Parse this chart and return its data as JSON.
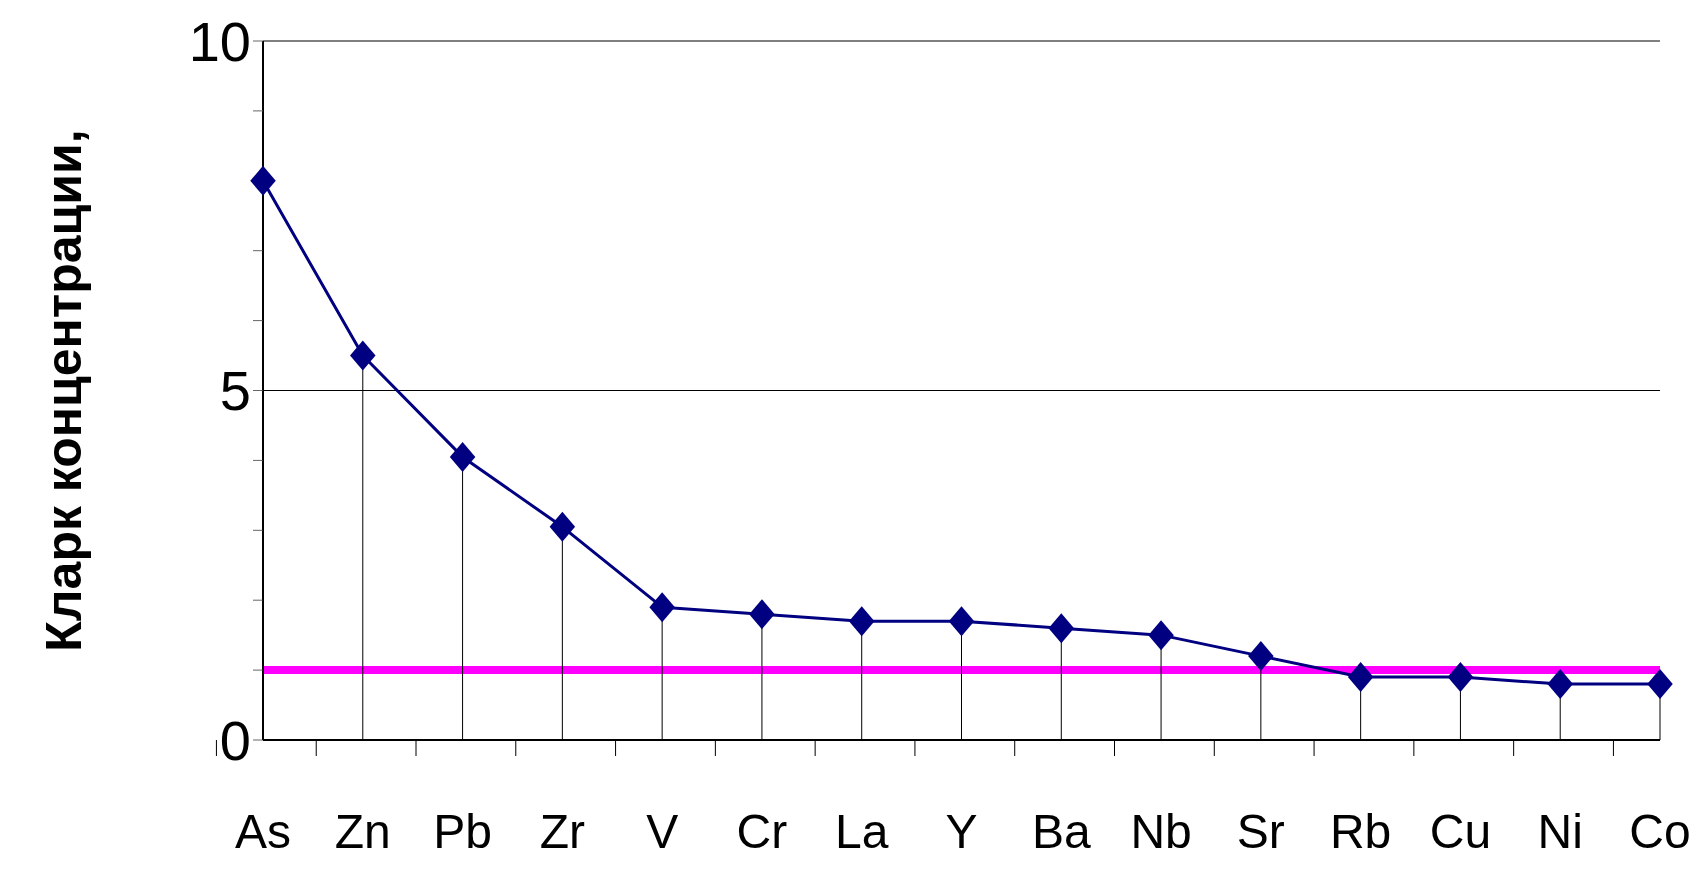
{
  "chart_data": {
    "type": "line",
    "ylabel": "Кларк концентрации,",
    "categories": [
      "As",
      "Zn",
      "Pb",
      "Zr",
      "V",
      "Cr",
      "La",
      "Y",
      "Ba",
      "Nb",
      "Sr",
      "Rb",
      "Cu",
      "Ni",
      "Co"
    ],
    "series": [
      {
        "color": "#000080",
        "marker": "none",
        "values": [
          8.0,
          5.5,
          4.05,
          3.05,
          1.9,
          1.8,
          1.7,
          1.7,
          1.6,
          1.5,
          1.2,
          0.9,
          0.9,
          0.8,
          0.8
        ]
      },
      {
        "type": "lollipop",
        "color": "#000080",
        "values": [
          8.0,
          5.5,
          4.05,
          3.05,
          1.9,
          1.8,
          1.7,
          1.7,
          1.6,
          1.5,
          1.2,
          0.9,
          0.9,
          0.8,
          0.8
        ]
      }
    ],
    "ylim": [
      0,
      10
    ],
    "yticks": [
      0,
      {
        "value": 1,
        "label": null
      },
      {
        "value": 2,
        "label": null
      },
      {
        "value": 3,
        "label": null
      },
      {
        "value": 4,
        "label": null
      },
      5,
      {
        "value": 6,
        "label": null
      },
      {
        "value": 7,
        "label": null
      },
      {
        "value": 8,
        "label": null
      },
      {
        "value": 9,
        "label": null
      },
      10
    ],
    "marker": "diamond",
    "line_style": "solid",
    "ref_lines": [
      {
        "axis": "y",
        "value": 5,
        "color": "#000000"
      },
      {
        "axis": "y",
        "value": 1,
        "color": "#ff00ff"
      }
    ]
  }
}
